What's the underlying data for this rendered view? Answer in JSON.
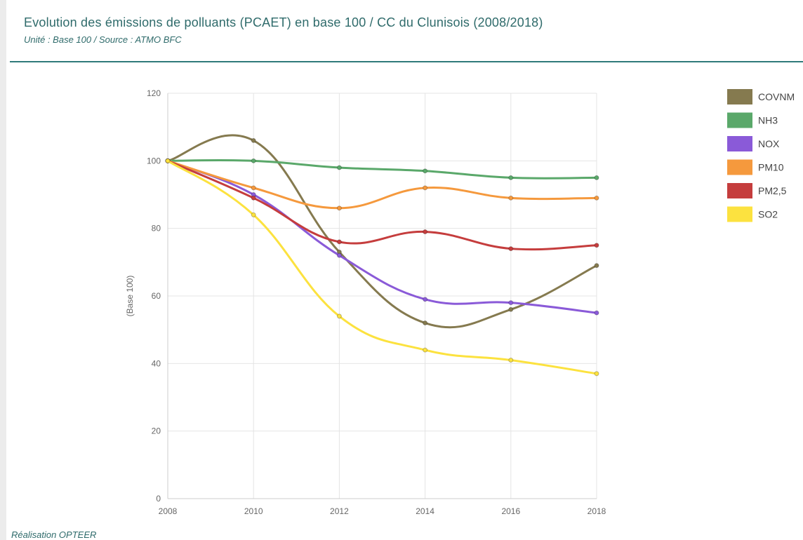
{
  "header": {
    "title": "Evolution des émissions de polluants (PCAET) en base 100 / CC du Clunisois (2008/2018)",
    "subtitle": "Unité : Base 100 / Source : ATMO BFC"
  },
  "footer": {
    "credit": "Réalisation OPTEER"
  },
  "chart_data": {
    "type": "line",
    "title": "Evolution des émissions de polluants (PCAET) en base 100 / CC du Clunisois (2008/2018)",
    "subtitle": "Unité : Base 100 / Source : ATMO BFC",
    "xlabel": "",
    "ylabel": "(Base 100)",
    "x": [
      "2008",
      "2010",
      "2012",
      "2014",
      "2016",
      "2018"
    ],
    "ylim": [
      0,
      120
    ],
    "yticks": [
      0,
      20,
      40,
      60,
      80,
      100,
      120
    ],
    "grid": true,
    "legend_position": "right",
    "smooth": true,
    "series": [
      {
        "name": "COVNM",
        "color": "#857a4f",
        "values": [
          100,
          106,
          73,
          52,
          56,
          69
        ]
      },
      {
        "name": "NH3",
        "color": "#5aa86a",
        "values": [
          100,
          100,
          98,
          97,
          95,
          95
        ]
      },
      {
        "name": "NOX",
        "color": "#8a5ad8",
        "values": [
          100,
          90,
          72,
          59,
          58,
          55
        ]
      },
      {
        "name": "PM10",
        "color": "#f5993d",
        "values": [
          100,
          92,
          86,
          92,
          89,
          89
        ]
      },
      {
        "name": "PM2,5",
        "color": "#c53d3d",
        "values": [
          100,
          89,
          76,
          79,
          74,
          75
        ]
      },
      {
        "name": "SO2",
        "color": "#fce23f",
        "values": [
          100,
          84,
          54,
          44,
          41,
          37
        ]
      }
    ]
  }
}
